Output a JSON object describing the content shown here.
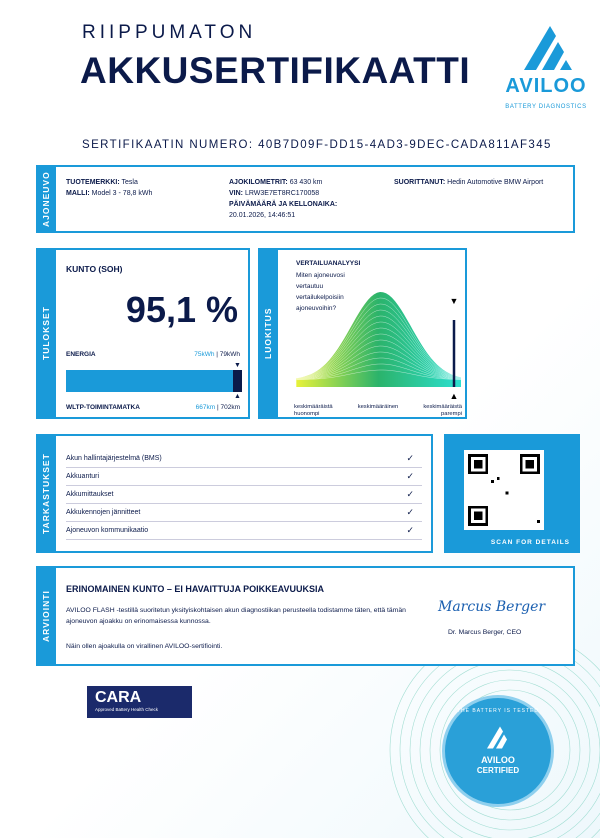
{
  "header": {
    "line1": "RIIPPUMATON",
    "line2": "AKKUSERTIFIKAATTI",
    "certificate_label": "SERTIFIKAATIN NUMERO:",
    "certificate_number": "40B7D09F-DD15-4AD3-9DEC-CADA811AF345"
  },
  "logo": {
    "brand": "AVILOO",
    "tagline": "BATTERY DIAGNOSTICS",
    "color": "#1a9ad9"
  },
  "vehicle": {
    "section": "AJONEUVO",
    "brand_label": "TUOTEMERKKI:",
    "brand": "Tesla",
    "model_label": "MALLI:",
    "model": "Model 3 - 78,8 kWh",
    "mileage_label": "AJOKILOMETRIT:",
    "mileage": "63 430 km",
    "vin_label": "VIN:",
    "vin": "LRW3E7ET8RC170058",
    "date_label": "PÄIVÄMÄÄRÄ JA KELLONAIKA:",
    "date": "20.01.2026, 14:46:51",
    "performed_label": "SUORITTANUT:",
    "performed_by": "Hedin Automotive BMW Airport"
  },
  "results": {
    "section": "TULOKSET",
    "soh_label": "KUNTO (SOH)",
    "soh": "95,1 %",
    "energy_label": "ENERGIA",
    "energy_current": "75kWh",
    "energy_total": "79kWh",
    "range_label": "WLTP-TOIMINTAMATKA",
    "range_current": "667km",
    "range_total": "702km",
    "fill_percent": 95.1
  },
  "rating": {
    "section": "LUOKITUS",
    "title": "VERTAILUANALYYSI",
    "question": "Miten ajoneuvosi vertautuu vertailukelpoisiin ajoneuvoihin?",
    "low": "keskimääräistä huonompi",
    "mid": "keskimääräinen",
    "high": "keskimääräistä parempi"
  },
  "checks": {
    "section": "TARKASTUKSET",
    "items": [
      "Akun hallintajärjestelmä (BMS)",
      "Akkuanturi",
      "Akkumittaukset",
      "Akkukennojen jännitteet",
      "Ajoneuvon kommunikaatio"
    ],
    "qr_caption": "SCAN FOR DETAILS"
  },
  "assessment": {
    "section": "ARVIOINTI",
    "headline": "ERINOMAINEN KUNTO – EI HAVAITTUJA POIKKEAVUUKSIA",
    "body": "AVILOO FLASH -testillä suoritetun yksityiskohtaisen akun diagnostiikan perusteella todistamme täten, että tämän ajoneuvon ajoakku on erinomaisessa kunnossa.",
    "note": "Näin ollen ajoakulla on virallinen AVILOO-sertifiointi.",
    "signature": "Marcus Berger",
    "signer": "Dr. Marcus Berger, CEO"
  },
  "badges": {
    "cara": "CARA",
    "cara_sub": "Approved Battery Health Check",
    "seal_brand": "AVILOO",
    "seal_text": "CERTIFIED",
    "seal_ring": "THE BATTERY IS TESTED"
  }
}
